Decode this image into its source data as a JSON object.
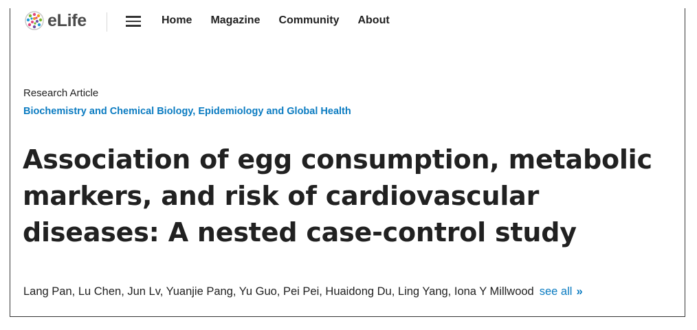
{
  "header": {
    "logo_text": "eLife",
    "logo_icon": "elife-dots-icon",
    "menu_icon": "hamburger-menu-icon",
    "nav": [
      {
        "label": "Home"
      },
      {
        "label": "Magazine"
      },
      {
        "label": "Community"
      },
      {
        "label": "About"
      }
    ]
  },
  "article": {
    "type": "Research Article",
    "subjects": [
      "Biochemistry and Chemical Biology",
      "Epidemiology and Global Health"
    ],
    "subject_separator": ", ",
    "title": "Association of egg consumption, metabolic markers, and risk of cardiovascular diseases: A nested case-control study",
    "authors": "Lang Pan, Lu Chen, Jun Lv, Yuanjie Pang, Yu Guo, Pei Pei, Huaidong Du, Ling Yang, Iona Y Millwood",
    "see_all_label": "see all",
    "see_all_chevron": "»"
  },
  "colors": {
    "link": "#0a7bc1",
    "text": "#212121",
    "border": "#333333"
  }
}
